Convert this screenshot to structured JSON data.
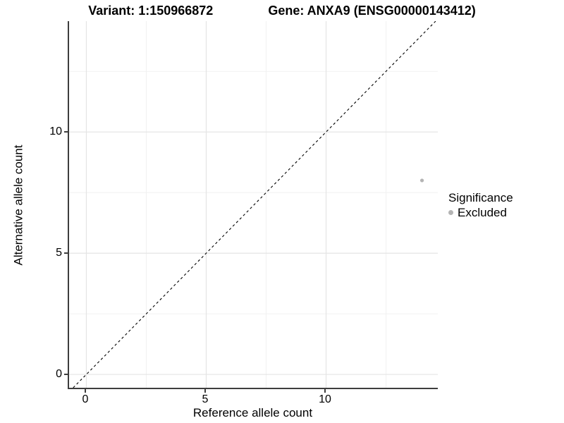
{
  "title": {
    "variant": "Variant: 1:150966872",
    "gene": "Gene: ANXA9 (ENSG00000143412)"
  },
  "axes": {
    "x": {
      "label": "Reference allele count",
      "ticks": [
        "0",
        "5",
        "10"
      ]
    },
    "y": {
      "label": "Alternative allele count",
      "ticks": [
        "0",
        "5",
        "10"
      ]
    }
  },
  "legend": {
    "title": "Significance",
    "items": [
      {
        "label": "Excluded",
        "color": "#b4b4b4"
      }
    ]
  },
  "colors": {
    "axis_line": "#3d3d3d",
    "grid_major": "#e4e4e4",
    "grid_minor": "#f1f1f1",
    "reference_line": "#000000",
    "point": "#b4b4b4",
    "background": "#ffffff",
    "text": "#000000"
  },
  "chart_data": {
    "type": "scatter",
    "title": "Variant: 1:150966872 — Gene: ANXA9 (ENSG00000143412)",
    "xlabel": "Reference allele count",
    "ylabel": "Alternative allele count",
    "xlim": [
      -0.72,
      14.66
    ],
    "ylim": [
      -0.55,
      14.57
    ],
    "x_ticks": [
      0,
      5,
      10
    ],
    "y_ticks": [
      0,
      5,
      10
    ],
    "x_grid_major": [
      0,
      5,
      10
    ],
    "x_grid_minor": [
      2.5,
      7.5,
      12.5
    ],
    "y_grid_major": [
      0,
      5,
      10
    ],
    "y_grid_minor": [
      2.5,
      7.5,
      12.5
    ],
    "grid": "on",
    "legend_position": "right",
    "series": [
      {
        "name": "Excluded",
        "color": "#b4b4b4",
        "marker": "circle",
        "points": [
          {
            "x": 14,
            "y": 8
          }
        ]
      }
    ],
    "reference_line": {
      "type": "identity",
      "equation": "y = x",
      "style": "dashed",
      "color": "#000000"
    }
  }
}
